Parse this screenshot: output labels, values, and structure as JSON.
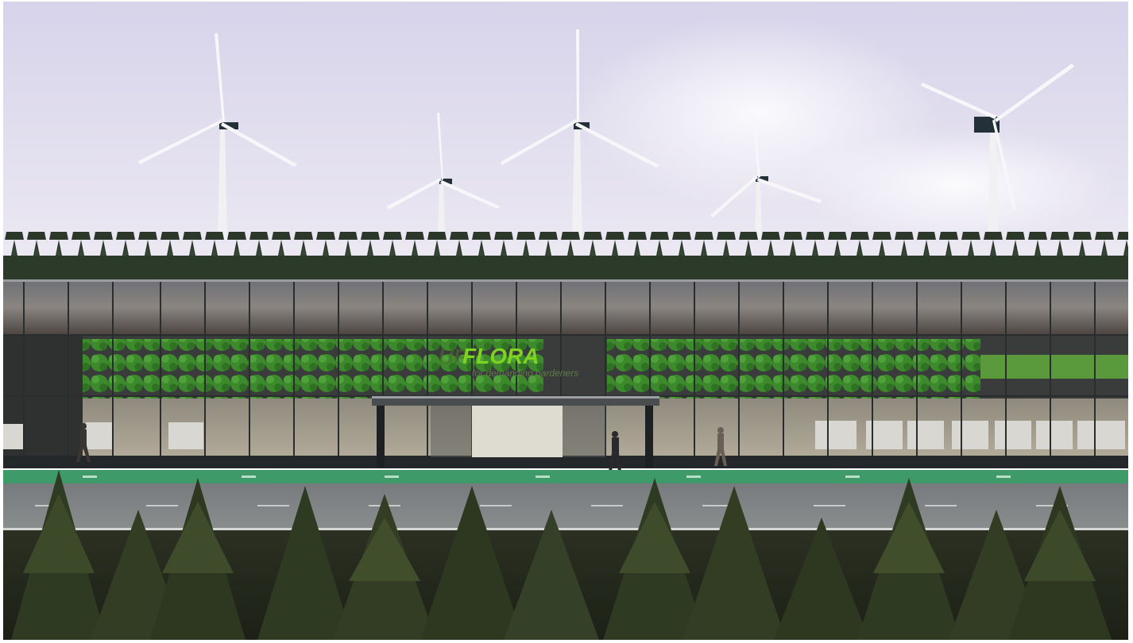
{
  "image": {
    "subject": "architectural rendering",
    "elements": [
      "wind-turbines",
      "conifer-treeline",
      "glass-greenhouse",
      "bus-shelter",
      "pedestrians",
      "bike-lane",
      "road",
      "foreground-conifers"
    ]
  },
  "signage": {
    "logo": "FLORA",
    "logo_prefix": "UP",
    "tagline": "for demanding gardeners"
  },
  "colors": {
    "sky_top": "#d9d6ea",
    "sky_bottom": "#e9e6f2",
    "treeline": "#2c3a2a",
    "plants": "#3f8f2e",
    "logo": "#7ed321",
    "bike_lane": "#3f9a6a",
    "road": "#7f8384"
  }
}
